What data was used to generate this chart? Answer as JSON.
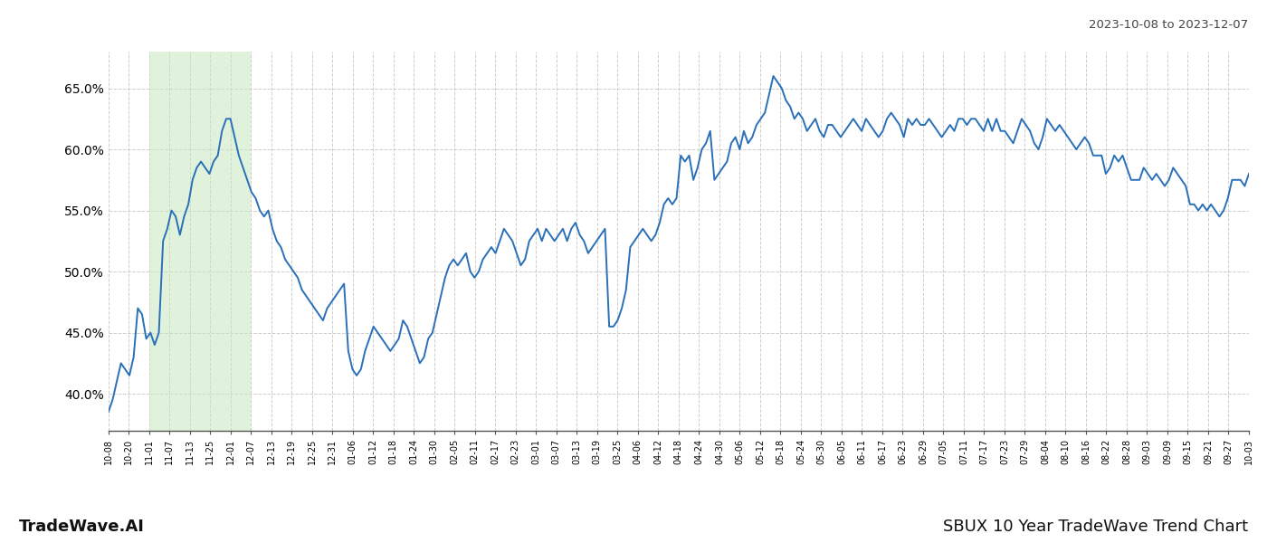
{
  "title_top_right": "2023-10-08 to 2023-12-07",
  "title_bottom_left": "TradeWave.AI",
  "title_bottom_right": "SBUX 10 Year TradeWave Trend Chart",
  "line_color": "#2970b8",
  "line_width": 1.4,
  "shade_color": "#c8e6c0",
  "shade_alpha": 0.55,
  "background_color": "#ffffff",
  "grid_color": "#c8c8c8",
  "ylim": [
    37.0,
    68.0
  ],
  "yticks": [
    40.0,
    45.0,
    50.0,
    55.0,
    60.0,
    65.0
  ],
  "x_labels": [
    "10-08",
    "10-20",
    "11-01",
    "11-07",
    "11-13",
    "11-25",
    "12-01",
    "12-07",
    "12-13",
    "12-19",
    "12-25",
    "12-31",
    "01-06",
    "01-12",
    "01-18",
    "01-24",
    "01-30",
    "02-05",
    "02-11",
    "02-17",
    "02-23",
    "03-01",
    "03-07",
    "03-13",
    "03-19",
    "03-25",
    "04-06",
    "04-12",
    "04-18",
    "04-24",
    "04-30",
    "05-06",
    "05-12",
    "05-18",
    "05-24",
    "05-30",
    "06-05",
    "06-11",
    "06-17",
    "06-23",
    "06-29",
    "07-05",
    "07-11",
    "07-17",
    "07-23",
    "07-29",
    "08-04",
    "08-10",
    "08-16",
    "08-22",
    "08-28",
    "09-03",
    "09-09",
    "09-15",
    "09-21",
    "09-27",
    "10-03"
  ],
  "shade_x_start_label": "11-01",
  "shade_x_end_label": "12-07",
  "y_values": [
    38.5,
    39.5,
    41.0,
    42.5,
    42.0,
    41.5,
    43.0,
    47.0,
    46.5,
    44.5,
    45.0,
    44.0,
    45.0,
    52.5,
    53.5,
    55.0,
    54.5,
    53.0,
    54.5,
    55.5,
    57.5,
    58.5,
    59.0,
    58.5,
    58.0,
    59.0,
    59.5,
    61.5,
    62.5,
    62.5,
    61.0,
    59.5,
    58.5,
    57.5,
    56.5,
    56.0,
    55.0,
    54.5,
    55.0,
    53.5,
    52.5,
    52.0,
    51.0,
    50.5,
    50.0,
    49.5,
    48.5,
    48.0,
    47.5,
    47.0,
    46.5,
    46.0,
    47.0,
    47.5,
    48.0,
    48.5,
    49.0,
    43.5,
    42.0,
    41.5,
    42.0,
    43.5,
    44.5,
    45.5,
    45.0,
    44.5,
    44.0,
    43.5,
    44.0,
    44.5,
    46.0,
    45.5,
    44.5,
    43.5,
    42.5,
    43.0,
    44.5,
    45.0,
    46.5,
    48.0,
    49.5,
    50.5,
    51.0,
    50.5,
    51.0,
    51.5,
    50.0,
    49.5,
    50.0,
    51.0,
    51.5,
    52.0,
    51.5,
    52.5,
    53.5,
    53.0,
    52.5,
    51.5,
    50.5,
    51.0,
    52.5,
    53.0,
    53.5,
    52.5,
    53.5,
    53.0,
    52.5,
    53.0,
    53.5,
    52.5,
    53.5,
    54.0,
    53.0,
    52.5,
    51.5,
    52.0,
    52.5,
    53.0,
    53.5,
    45.5,
    45.5,
    46.0,
    47.0,
    48.5,
    52.0,
    52.5,
    53.0,
    53.5,
    53.0,
    52.5,
    53.0,
    54.0,
    55.5,
    56.0,
    55.5,
    56.0,
    59.5,
    59.0,
    59.5,
    57.5,
    58.5,
    60.0,
    60.5,
    61.5,
    57.5,
    58.0,
    58.5,
    59.0,
    60.5,
    61.0,
    60.0,
    61.5,
    60.5,
    61.0,
    62.0,
    62.5,
    63.0,
    64.5,
    66.0,
    65.5,
    65.0,
    64.0,
    63.5,
    62.5,
    63.0,
    62.5,
    61.5,
    62.0,
    62.5,
    61.5,
    61.0,
    62.0,
    62.0,
    61.5,
    61.0,
    61.5,
    62.0,
    62.5,
    62.0,
    61.5,
    62.5,
    62.0,
    61.5,
    61.0,
    61.5,
    62.5,
    63.0,
    62.5,
    62.0,
    61.0,
    62.5,
    62.0,
    62.5,
    62.0,
    62.0,
    62.5,
    62.0,
    61.5,
    61.0,
    61.5,
    62.0,
    61.5,
    62.5,
    62.5,
    62.0,
    62.5,
    62.5,
    62.0,
    61.5,
    62.5,
    61.5,
    62.5,
    61.5,
    61.5,
    61.0,
    60.5,
    61.5,
    62.5,
    62.0,
    61.5,
    60.5,
    60.0,
    61.0,
    62.5,
    62.0,
    61.5,
    62.0,
    61.5,
    61.0,
    60.5,
    60.0,
    60.5,
    61.0,
    60.5,
    59.5,
    59.5,
    59.5,
    58.0,
    58.5,
    59.5,
    59.0,
    59.5,
    58.5,
    57.5,
    57.5,
    57.5,
    58.5,
    58.0,
    57.5,
    58.0,
    57.5,
    57.0,
    57.5,
    58.5,
    58.0,
    57.5,
    57.0,
    55.5,
    55.5,
    55.0,
    55.5,
    55.0,
    55.5,
    55.0,
    54.5,
    55.0,
    56.0,
    57.5,
    57.5,
    57.5,
    57.0,
    58.0
  ]
}
